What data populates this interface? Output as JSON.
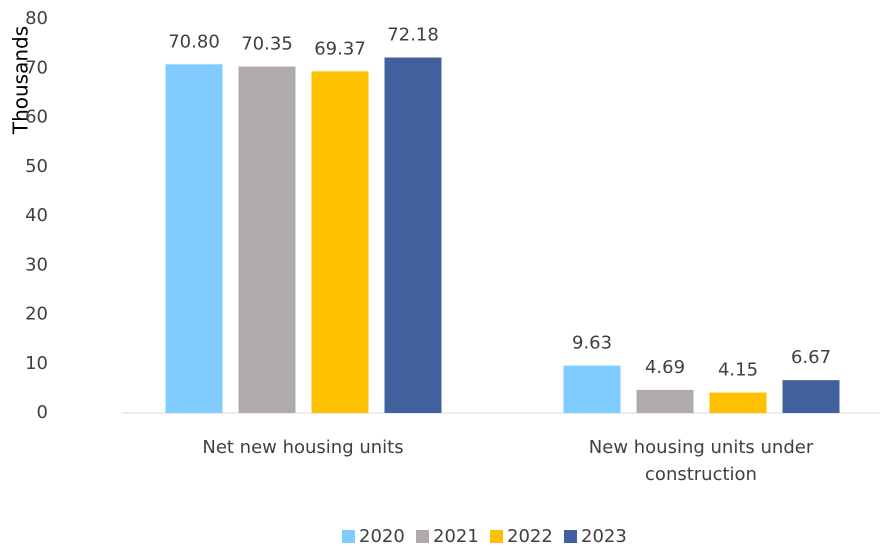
{
  "chart_data": {
    "type": "bar",
    "y_label": "Thousands",
    "categories": [
      "Net new housing units",
      "New housing units under construction"
    ],
    "series": [
      {
        "name": "2020",
        "color": "#80ccff",
        "values": [
          70.8,
          9.63
        ],
        "value_labels": [
          "70.80",
          "9.63"
        ]
      },
      {
        "name": "2021",
        "color": "#afabab",
        "values": [
          70.35,
          4.69
        ],
        "value_labels": [
          "70.35",
          "4.69"
        ]
      },
      {
        "name": "2022",
        "color": "#ffc000",
        "values": [
          69.37,
          4.15
        ],
        "value_labels": [
          "69.37",
          "4.15"
        ]
      },
      {
        "name": "2023",
        "color": "#41609e",
        "values": [
          72.18,
          6.67
        ],
        "value_labels": [
          "72.18",
          "6.67"
        ]
      }
    ],
    "ylim": [
      0,
      80
    ],
    "yticks": [
      0,
      10,
      20,
      30,
      40,
      50,
      60,
      70,
      80
    ],
    "legend": "bottom"
  }
}
